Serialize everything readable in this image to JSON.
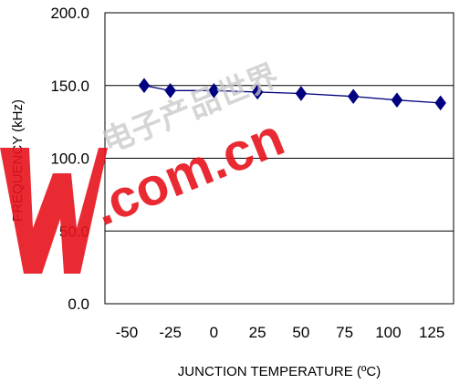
{
  "chart_data": {
    "type": "line",
    "title": "",
    "xlabel": "JUNCTION TEMPERATURE (ºC)",
    "ylabel": "FREQUENCY (kHz)",
    "ylim": [
      0,
      200
    ],
    "y_ticks": [
      "0.0",
      "50.0",
      "100.0",
      "150.0",
      "200.0"
    ],
    "x_ticks": [
      "-50",
      "-25",
      "0",
      "25",
      "50",
      "75",
      "100",
      "125"
    ],
    "x_tick_values": [
      -50,
      -25,
      0,
      25,
      50,
      75,
      100,
      125
    ],
    "xlim": [
      -62.5,
      137.5
    ],
    "grid": true,
    "legend": "none",
    "series": [
      {
        "x": [
          -40,
          -25,
          0,
          25,
          50,
          80,
          105,
          130
        ],
        "values": [
          150,
          146.5,
          146.5,
          145.5,
          144.5,
          142.5,
          140,
          138
        ],
        "color": "#000080",
        "marker": "diamond"
      }
    ]
  },
  "watermark": {
    "logo": "W",
    "text": ".com.cn",
    "chars": "电子产品世界",
    "color": "#e8141c"
  }
}
